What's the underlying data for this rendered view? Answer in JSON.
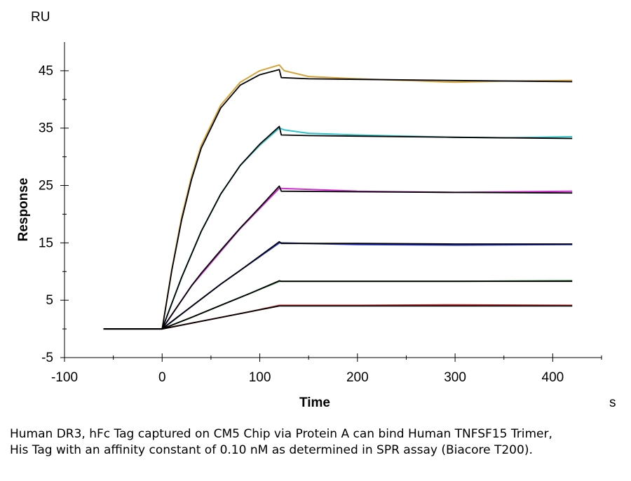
{
  "caption": "Human DR3, hFc Tag captured on CM5 Chip via Protein A can bind Human TNFSF15 Trimer, His Tag with an affinity constant of 0.10 nM as determined in SPR assay (Biacore T200).",
  "chart_data": {
    "type": "line",
    "title": "",
    "xlabel": "Time",
    "ylabel": "Response",
    "x_unit": "s",
    "y_unit": "RU",
    "xlim": [
      -100,
      450
    ],
    "ylim": [
      -5,
      50
    ],
    "xticks": [
      -100,
      0,
      100,
      200,
      300,
      400
    ],
    "yticks": [
      -5,
      5,
      15,
      25,
      35,
      45
    ],
    "grid": false,
    "legend": "none",
    "fit_color": "#000000",
    "series": [
      {
        "color": "#d4a43a",
        "x": [
          -60,
          0,
          10,
          20,
          30,
          40,
          60,
          80,
          100,
          120,
          125,
          150,
          200,
          250,
          300,
          350,
          420
        ],
        "y": [
          0,
          0,
          10.5,
          19.5,
          26.5,
          32,
          39,
          43,
          45,
          46,
          45,
          44,
          43.6,
          43.3,
          43.0,
          43.2,
          43.3
        ]
      },
      {
        "color": "#2ec4c8",
        "x": [
          -60,
          0,
          10,
          20,
          30,
          40,
          60,
          80,
          100,
          120,
          125,
          150,
          200,
          250,
          300,
          350,
          420
        ],
        "y": [
          0,
          0,
          4.5,
          9,
          13,
          17,
          23.5,
          28.5,
          32,
          35,
          34.7,
          34.1,
          33.8,
          33.6,
          33.4,
          33.3,
          33.5
        ]
      },
      {
        "color": "#d12ad0",
        "x": [
          -60,
          0,
          10,
          20,
          30,
          40,
          60,
          80,
          100,
          120,
          200,
          300,
          420
        ],
        "y": [
          0,
          0,
          2.5,
          5,
          7.5,
          9.5,
          13.5,
          17.5,
          21,
          24.5,
          24.0,
          23.8,
          24.0
        ]
      },
      {
        "color": "#2432c8",
        "x": [
          -60,
          0,
          20,
          40,
          60,
          80,
          100,
          120,
          200,
          300,
          420
        ],
        "y": [
          0,
          0,
          2.6,
          5.2,
          7.8,
          10.2,
          12.6,
          15.0,
          14.7,
          14.6,
          14.7
        ]
      },
      {
        "color": "#1c8a2c",
        "x": [
          -60,
          0,
          30,
          60,
          90,
          120,
          200,
          300,
          420
        ],
        "y": [
          0,
          0,
          2.0,
          4.1,
          6.2,
          8.3,
          8.3,
          8.3,
          8.4
        ]
      },
      {
        "color": "#c42a2a",
        "x": [
          -60,
          0,
          30,
          60,
          90,
          120,
          200,
          300,
          420
        ],
        "y": [
          0,
          0,
          1.0,
          2.0,
          3.0,
          4.1,
          4.1,
          4.2,
          4.1
        ]
      }
    ],
    "fits": [
      {
        "x": [
          -60,
          0,
          10,
          20,
          30,
          40,
          60,
          80,
          100,
          120,
          122,
          150,
          200,
          300,
          420
        ],
        "y": [
          0,
          0,
          10.3,
          19,
          26,
          31.5,
          38.5,
          42.5,
          44.3,
          45.2,
          43.8,
          43.6,
          43.5,
          43.3,
          43.1
        ]
      },
      {
        "x": [
          -60,
          0,
          10,
          20,
          30,
          40,
          60,
          80,
          100,
          120,
          122,
          150,
          200,
          300,
          420
        ],
        "y": [
          0,
          0,
          4.5,
          9,
          13,
          17,
          23.5,
          28.5,
          32.2,
          35.3,
          33.8,
          33.7,
          33.6,
          33.4,
          33.2
        ]
      },
      {
        "x": [
          -60,
          0,
          10,
          20,
          30,
          40,
          60,
          80,
          100,
          120,
          122,
          200,
          300,
          420
        ],
        "y": [
          0,
          0,
          2.5,
          5,
          7.5,
          9.7,
          13.7,
          17.6,
          21.2,
          24.9,
          24.0,
          23.9,
          23.8,
          23.7
        ]
      },
      {
        "x": [
          -60,
          0,
          20,
          40,
          60,
          80,
          100,
          120,
          122,
          200,
          300,
          420
        ],
        "y": [
          0,
          0,
          2.6,
          5.2,
          7.8,
          10.2,
          12.7,
          15.2,
          14.9,
          14.9,
          14.8,
          14.8
        ]
      },
      {
        "x": [
          -60,
          0,
          30,
          60,
          90,
          120,
          122,
          200,
          300,
          420
        ],
        "y": [
          0,
          0,
          2.0,
          4.1,
          6.2,
          8.4,
          8.3,
          8.3,
          8.3,
          8.3
        ]
      },
      {
        "x": [
          -60,
          0,
          30,
          60,
          90,
          120,
          122,
          200,
          300,
          420
        ],
        "y": [
          0,
          0,
          1.0,
          2.0,
          3.0,
          4.0,
          4.0,
          4.0,
          4.0,
          4.0
        ]
      }
    ]
  }
}
